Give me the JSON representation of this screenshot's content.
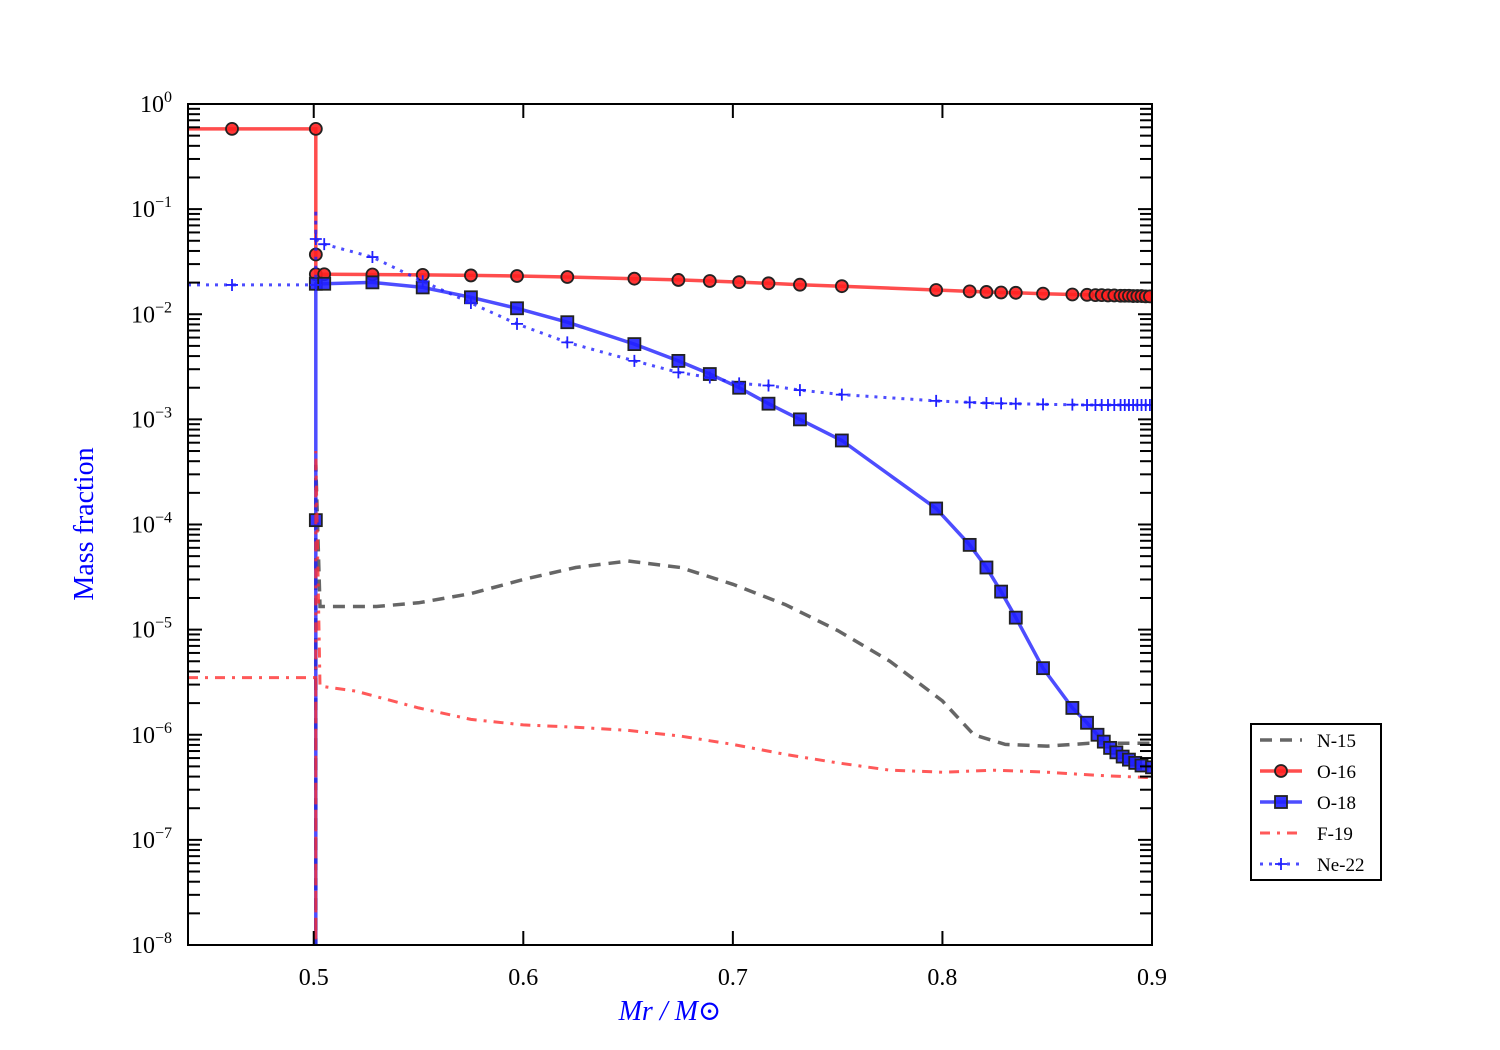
{
  "chart_data": {
    "type": "line",
    "title": "",
    "xlabel": "Mr / M⊙",
    "xlabel_parts": {
      "a": "Mr",
      "sep": " / ",
      "b": "M",
      "sub": "⊙"
    },
    "ylabel": "Mass fraction",
    "xlim": [
      0.44,
      0.9
    ],
    "ylim": [
      1e-08,
      1
    ],
    "yscale": "log",
    "grid": false,
    "legend_placement": "outside-right",
    "x_ticks": [
      "0.5",
      "0.6",
      "0.7",
      "0.8",
      "0.9"
    ],
    "x_tick_values": [
      0.5,
      0.6,
      0.7,
      0.8,
      0.9
    ],
    "y_ticks": [
      {
        "base": "10",
        "exp": "0",
        "value": 1
      },
      {
        "base": "10",
        "exp": "−1",
        "value": 0.1
      },
      {
        "base": "10",
        "exp": "−2",
        "value": 0.01
      },
      {
        "base": "10",
        "exp": "−3",
        "value": 0.001
      },
      {
        "base": "10",
        "exp": "−4",
        "value": 0.0001
      },
      {
        "base": "10",
        "exp": "−5",
        "value": 1e-05
      },
      {
        "base": "10",
        "exp": "−6",
        "value": 1e-06
      },
      {
        "base": "10",
        "exp": "−7",
        "value": 1e-07
      },
      {
        "base": "10",
        "exp": "−8",
        "value": 1e-08
      }
    ],
    "series": [
      {
        "name": "N-15",
        "color": "#404040",
        "style": "dashed",
        "marker": "none",
        "x": [
          0.501,
          0.501,
          0.503,
          0.53,
          0.55,
          0.575,
          0.6,
          0.625,
          0.65,
          0.675,
          0.7,
          0.725,
          0.75,
          0.775,
          0.8,
          0.815,
          0.83,
          0.85,
          0.87,
          0.9
        ],
        "y": [
          1e-09,
          0.00037,
          1.66e-05,
          1.66e-05,
          1.8e-05,
          2.2e-05,
          3e-05,
          3.9e-05,
          4.5e-05,
          3.9e-05,
          2.7e-05,
          1.73e-05,
          9.8e-06,
          5e-06,
          2.1e-06,
          1e-06,
          8.1e-07,
          7.8e-07,
          8.3e-07,
          8.3e-07
        ]
      },
      {
        "name": "O-16",
        "color": "#ff2020",
        "style": "solid",
        "marker": "circle",
        "x": [
          0.44,
          0.461,
          0.501,
          0.501,
          0.501,
          0.505,
          0.528,
          0.552,
          0.575,
          0.597,
          0.621,
          0.653,
          0.674,
          0.689,
          0.703,
          0.717,
          0.732,
          0.752,
          0.797,
          0.813,
          0.821,
          0.828,
          0.835,
          0.848,
          0.862,
          0.869,
          0.873,
          0.876,
          0.879,
          0.882,
          0.885,
          0.887,
          0.889,
          0.891,
          0.893,
          0.895,
          0.897,
          0.899
        ],
        "y": [
          0.58,
          0.58,
          0.58,
          0.037,
          0.024,
          0.024,
          0.0239,
          0.0237,
          0.0234,
          0.0231,
          0.0226,
          0.0218,
          0.0212,
          0.0207,
          0.0202,
          0.0197,
          0.0191,
          0.0185,
          0.017,
          0.0165,
          0.0163,
          0.0161,
          0.016,
          0.0157,
          0.0154,
          0.0153,
          0.0152,
          0.0152,
          0.0151,
          0.0151,
          0.015,
          0.015,
          0.015,
          0.0149,
          0.0149,
          0.0149,
          0.0148,
          0.0148
        ],
        "markers_skip_first": true
      },
      {
        "name": "O-18",
        "color": "#2020ff",
        "style": "solid",
        "marker": "square",
        "x": [
          0.501,
          0.501,
          0.501,
          0.505,
          0.528,
          0.552,
          0.575,
          0.597,
          0.621,
          0.653,
          0.674,
          0.689,
          0.703,
          0.717,
          0.732,
          0.752,
          0.797,
          0.813,
          0.821,
          0.828,
          0.835,
          0.848,
          0.862,
          0.869,
          0.874,
          0.877,
          0.88,
          0.883,
          0.886,
          0.889,
          0.892,
          0.895,
          0.9
        ],
        "y": [
          1e-09,
          0.00011,
          0.0195,
          0.0195,
          0.0201,
          0.018,
          0.0145,
          0.0114,
          0.0084,
          0.0052,
          0.0036,
          0.0027,
          0.002,
          0.00141,
          0.001,
          0.00063,
          0.000142,
          6.4e-05,
          3.9e-05,
          2.3e-05,
          1.3e-05,
          4.3e-06,
          1.8e-06,
          1.3e-06,
          1e-06,
          8.6e-07,
          7.5e-07,
          6.8e-07,
          6.2e-07,
          5.8e-07,
          5.4e-07,
          5.1e-07,
          4.9e-07
        ],
        "markers_skip_first": true
      },
      {
        "name": "F-19",
        "color": "#ff3030",
        "style": "dashdot",
        "marker": "none",
        "x": [
          0.44,
          0.501,
          0.501,
          0.501,
          0.503,
          0.52,
          0.55,
          0.575,
          0.6,
          0.625,
          0.65,
          0.675,
          0.7,
          0.725,
          0.75,
          0.775,
          0.8,
          0.825,
          0.85,
          0.875,
          0.9
        ],
        "y": [
          3.5e-06,
          3.5e-06,
          1e-09,
          0.0005,
          2.9e-06,
          2.6e-06,
          1.8e-06,
          1.4e-06,
          1.24e-06,
          1.18e-06,
          1.1e-06,
          9.7e-07,
          8.1e-07,
          6.5e-07,
          5.4e-07,
          4.6e-07,
          4.4e-07,
          4.6e-07,
          4.4e-07,
          4.1e-07,
          3.9e-07
        ]
      },
      {
        "name": "Ne-22",
        "color": "#2020ff",
        "style": "dotted",
        "marker": "plus",
        "x": [
          0.44,
          0.461,
          0.501,
          0.501,
          0.501,
          0.505,
          0.528,
          0.552,
          0.575,
          0.597,
          0.621,
          0.653,
          0.674,
          0.689,
          0.703,
          0.717,
          0.732,
          0.752,
          0.797,
          0.813,
          0.821,
          0.828,
          0.835,
          0.848,
          0.862,
          0.869,
          0.873,
          0.876,
          0.879,
          0.882,
          0.885,
          0.887,
          0.889,
          0.891,
          0.893,
          0.895,
          0.897,
          0.899
        ],
        "y": [
          0.019,
          0.019,
          0.019,
          0.1,
          0.052,
          0.0464,
          0.035,
          0.0206,
          0.0128,
          0.0081,
          0.0054,
          0.0036,
          0.0028,
          0.0025,
          0.0022,
          0.0021,
          0.0019,
          0.00172,
          0.0015,
          0.00145,
          0.00143,
          0.00142,
          0.00141,
          0.00139,
          0.00138,
          0.00137,
          0.00137,
          0.00137,
          0.00137,
          0.00137,
          0.00137,
          0.00137,
          0.00137,
          0.00137,
          0.00137,
          0.00137,
          0.00137,
          0.00137
        ],
        "markers_skip_first": true
      }
    ]
  }
}
